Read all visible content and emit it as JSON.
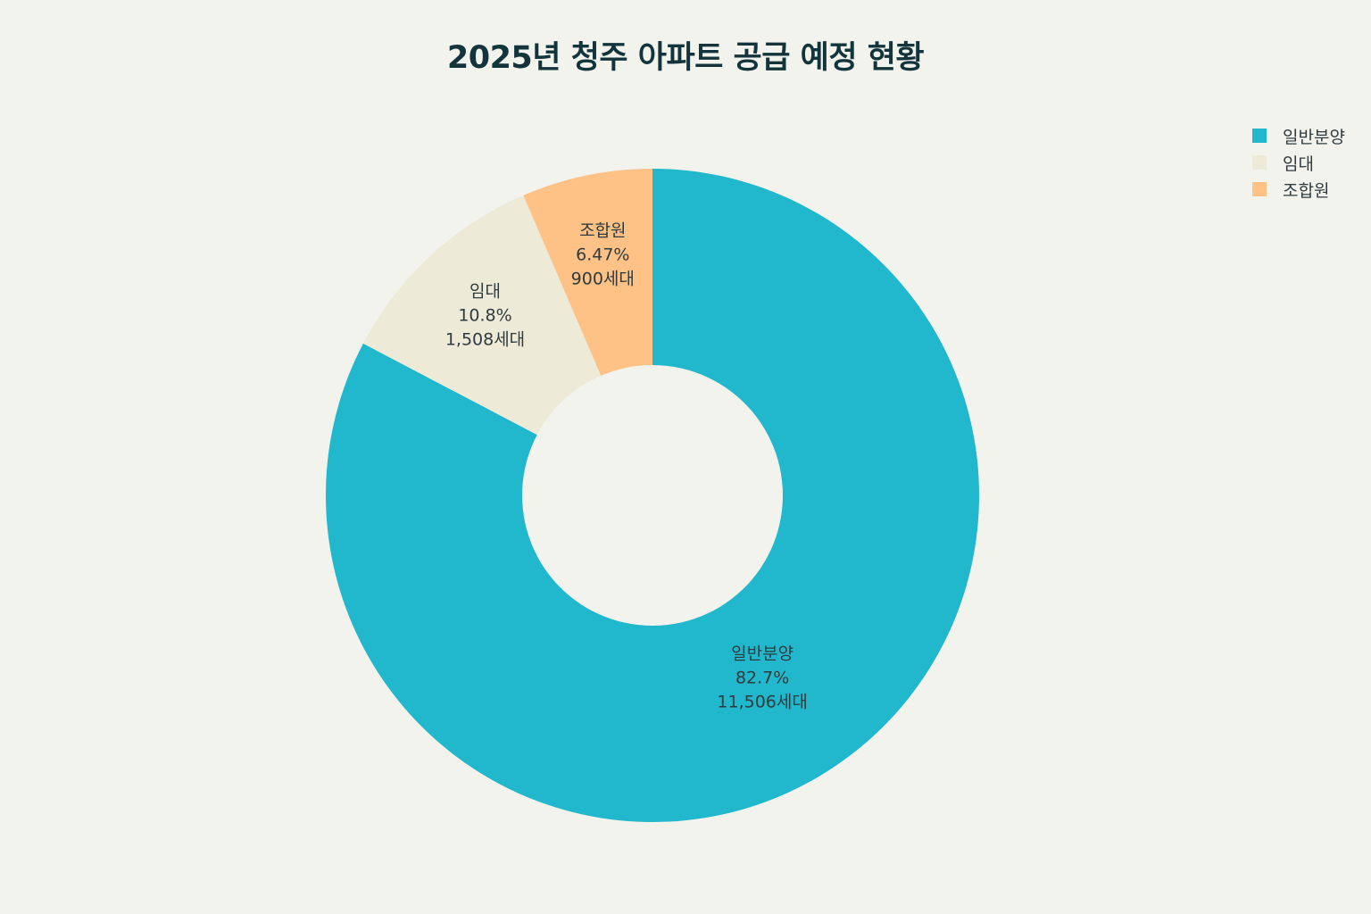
{
  "chart_data": {
    "type": "pie",
    "title": "2025년 청주 아파트 공급 예정 현황",
    "legend_position": "top-right",
    "donut": true,
    "slices": [
      {
        "name": "일반분양",
        "percent_label": "82.7%",
        "count_label": "11,506세대",
        "value": 11506,
        "color": "#21b7cc"
      },
      {
        "name": "임대",
        "percent_label": "10.8%",
        "count_label": "1,508세대",
        "value": 1508,
        "color": "#eeead8"
      },
      {
        "name": "조합원",
        "percent_label": "6.47%",
        "count_label": "900세대",
        "value": 900,
        "color": "#fec186"
      }
    ]
  }
}
